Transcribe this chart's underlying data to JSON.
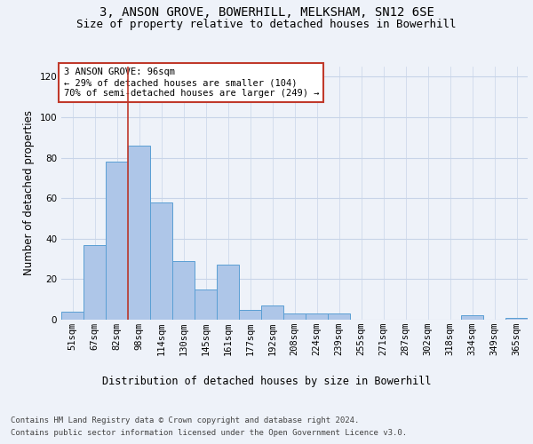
{
  "title_line1": "3, ANSON GROVE, BOWERHILL, MELKSHAM, SN12 6SE",
  "title_line2": "Size of property relative to detached houses in Bowerhill",
  "xlabel": "Distribution of detached houses by size in Bowerhill",
  "ylabel": "Number of detached properties",
  "categories": [
    "51sqm",
    "67sqm",
    "82sqm",
    "98sqm",
    "114sqm",
    "130sqm",
    "145sqm",
    "161sqm",
    "177sqm",
    "192sqm",
    "208sqm",
    "224sqm",
    "239sqm",
    "255sqm",
    "271sqm",
    "287sqm",
    "302sqm",
    "318sqm",
    "334sqm",
    "349sqm",
    "365sqm"
  ],
  "values": [
    4,
    37,
    78,
    86,
    58,
    29,
    15,
    27,
    5,
    7,
    3,
    3,
    3,
    0,
    0,
    0,
    0,
    0,
    2,
    0,
    1
  ],
  "bar_color": "#aec6e8",
  "bar_edge_color": "#5a9fd4",
  "vline_x": 2.5,
  "vline_color": "#c0392b",
  "annotation_text": "3 ANSON GROVE: 96sqm\n← 29% of detached houses are smaller (104)\n70% of semi-detached houses are larger (249) →",
  "annotation_box_color": "white",
  "annotation_box_edge": "#c0392b",
  "ylim": [
    0,
    125
  ],
  "yticks": [
    0,
    20,
    40,
    60,
    80,
    100,
    120
  ],
  "footer_line1": "Contains HM Land Registry data © Crown copyright and database right 2024.",
  "footer_line2": "Contains public sector information licensed under the Open Government Licence v3.0.",
  "background_color": "#eef2f9",
  "plot_background": "#eef2f9",
  "grid_color": "#c8d4e8",
  "title_fontsize": 10,
  "subtitle_fontsize": 9,
  "axis_label_fontsize": 8.5,
  "tick_fontsize": 7.5,
  "footer_fontsize": 6.5,
  "annotation_fontsize": 7.5
}
